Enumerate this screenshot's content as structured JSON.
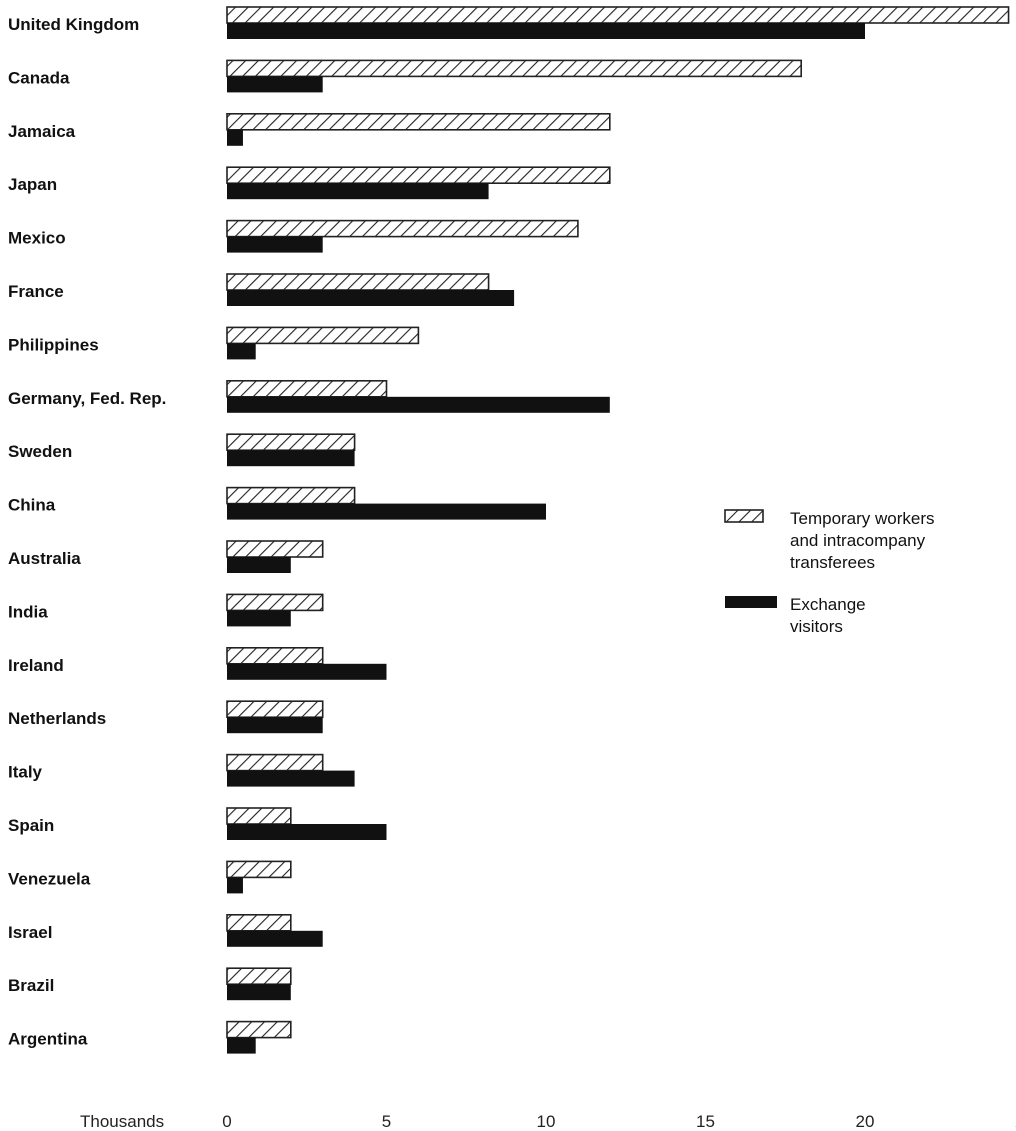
{
  "chart_data": {
    "type": "bar",
    "orientation": "horizontal",
    "categories": [
      "United Kingdom",
      "Canada",
      "Jamaica",
      "Japan",
      "Mexico",
      "France",
      "Philippines",
      "Germany, Fed. Rep.",
      "Sweden",
      "China",
      "Australia",
      "India",
      "Ireland",
      "Netherlands",
      "Italy",
      "Spain",
      "Venezuela",
      "Israel",
      "Brazil",
      "Argentina"
    ],
    "series": [
      {
        "name": "Temporary workers and intracompany transferees",
        "legend_lines": [
          "Temporary workers",
          "and intracompany",
          "transferees"
        ],
        "pattern": "hatched",
        "values": [
          24.5,
          18,
          12,
          12,
          11,
          8.2,
          6,
          5,
          4,
          4,
          3,
          3,
          3,
          3,
          3,
          2,
          2,
          2,
          2,
          2
        ]
      },
      {
        "name": "Exchange visitors",
        "legend_lines": [
          "Exchange",
          "visitors"
        ],
        "pattern": "solid",
        "values": [
          20,
          3,
          0.5,
          8.2,
          3,
          9,
          0.9,
          12,
          4,
          10,
          2,
          2,
          5,
          3,
          4,
          5,
          0.5,
          3,
          2,
          0.9
        ]
      }
    ],
    "xlabel": "Thousands",
    "xlim": [
      0,
      25
    ],
    "xticks": [
      "0",
      "5",
      "10",
      "15",
      "20",
      "25"
    ],
    "legend_position": "right-middle",
    "grid": false,
    "colors": {
      "solid": "#111111",
      "hatch": "#222222",
      "background": "#ffffff"
    }
  }
}
